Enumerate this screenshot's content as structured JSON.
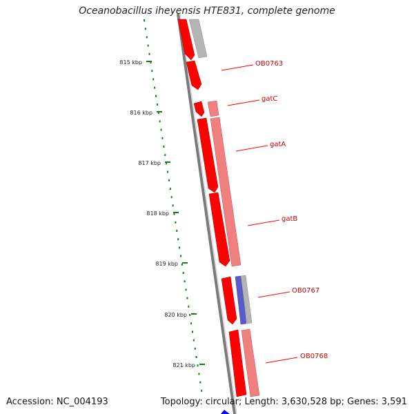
{
  "header": {
    "title": "Oceanobacillus iheyensis HTE831, complete genome"
  },
  "footer": {
    "accession": "Accession: NC_004193",
    "summary": "Topology: circular; Length: 3,630,528 bp; Genes: 3,591"
  },
  "ticks": [
    "815 kbp",
    "816 kbp",
    "817 kbp",
    "818 kbp",
    "819 kbp",
    "820 kbp",
    "821 kbp"
  ],
  "genes": [
    "OB0763",
    "gatC",
    "gatA",
    "gatB",
    "OB0767",
    "OB0768"
  ],
  "colors": {
    "forward_strand": "#ff0000",
    "reverse_strand": "#f08080",
    "hypothetical": "#b0b0b0",
    "blue_feature": "#5a5acd",
    "tick_green": "#1a7a1a",
    "backbone": "#777777"
  }
}
